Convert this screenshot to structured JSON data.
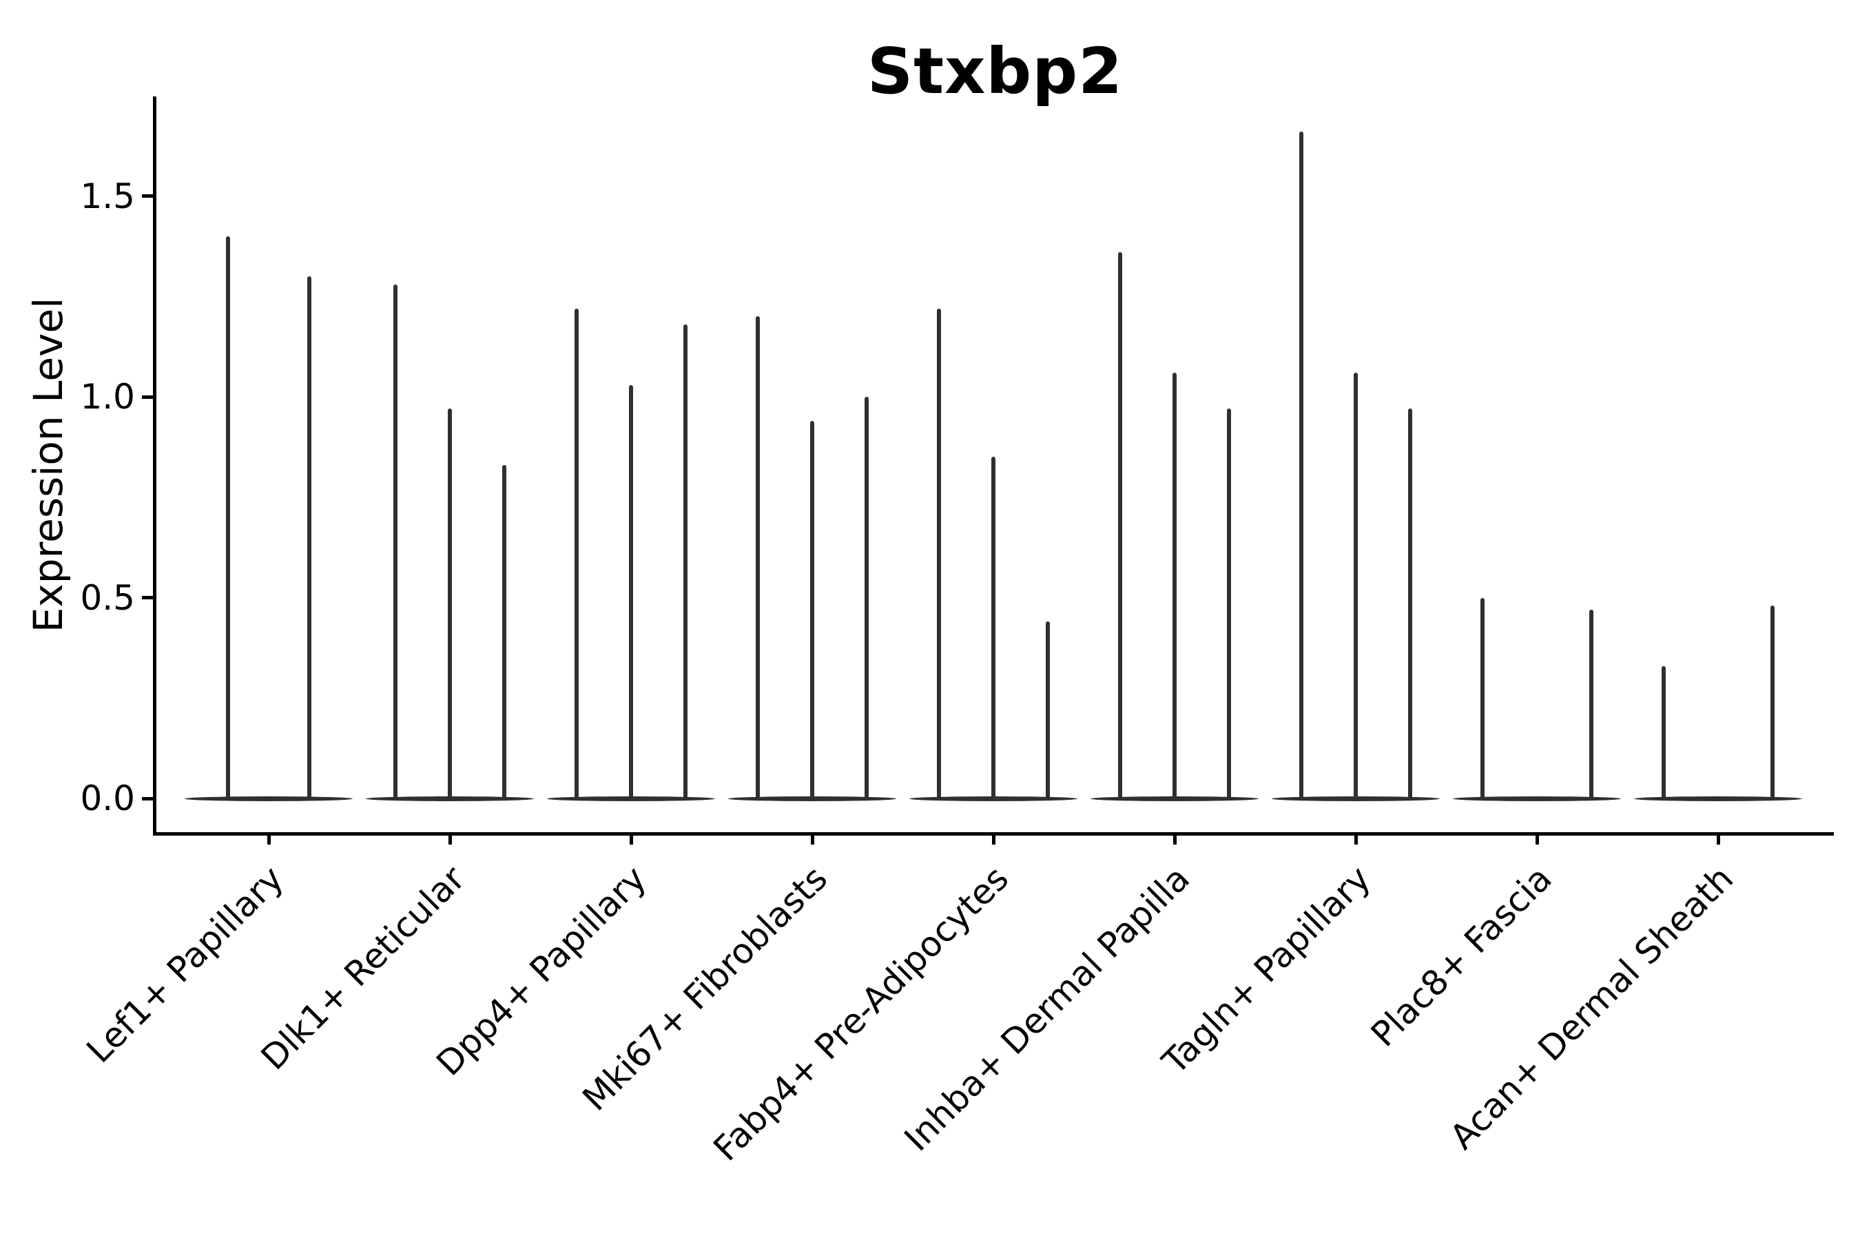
{
  "title": "Stxbp2",
  "y_axis": {
    "label": "Expression Level",
    "tick_labels": [
      "0.0",
      "0.5",
      "1.0",
      "1.5"
    ]
  },
  "x_axis": {
    "categories": [
      "Lef1+ Papillary",
      "Dlk1+ Reticular",
      "Dpp4+ Papillary",
      "Mki67+ Fibroblasts",
      "Fabp4+ Pre-Adipocytes",
      "Inhba+ Dermal Papilla",
      "Tagln+ Papillary",
      "Plac8+ Fascia",
      "Acan+ Dermal Sheath"
    ],
    "label_rotation_deg": 45
  },
  "colors": {
    "background": "#ffffff",
    "axis": "#000000",
    "text": "#000000",
    "violin": "#303030"
  },
  "chart_data": {
    "type": "violin",
    "title": "Stxbp2",
    "xlabel": "",
    "ylabel": "Expression Level",
    "ylim": [
      0,
      1.75
    ],
    "yticks": [
      0.0,
      0.5,
      1.0,
      1.5
    ],
    "ytick_labels": [
      "0.0",
      "0.5",
      "1.0",
      "1.5"
    ],
    "grid": false,
    "legend": "none",
    "categories": [
      "Lef1+ Papillary",
      "Dlk1+ Reticular",
      "Dpp4+ Papillary",
      "Mki67+ Fibroblasts",
      "Fabp4+ Pre-Adipocytes",
      "Inhba+ Dermal Papilla",
      "Tagln+ Papillary",
      "Plac8+ Fascia",
      "Acan+ Dermal Sheath"
    ],
    "violin_note": "Each category shows narrow spike-shaped violins (max expression) rising from a flat lens-shaped base at 0; offset is the fraction of category spacing from the category tick.",
    "violins": [
      {
        "category": "Lef1+ Papillary",
        "spikes": [
          {
            "offset": -0.225,
            "max": 1.4
          },
          {
            "offset": 0.225,
            "max": 1.3
          }
        ]
      },
      {
        "category": "Dlk1+ Reticular",
        "spikes": [
          {
            "offset": -0.3,
            "max": 1.28
          },
          {
            "offset": 0.0,
            "max": 0.97
          },
          {
            "offset": 0.3,
            "max": 0.83
          }
        ]
      },
      {
        "category": "Dpp4+ Papillary",
        "spikes": [
          {
            "offset": -0.3,
            "max": 1.22
          },
          {
            "offset": 0.0,
            "max": 1.03
          },
          {
            "offset": 0.3,
            "max": 1.18
          }
        ]
      },
      {
        "category": "Mki67+ Fibroblasts",
        "spikes": [
          {
            "offset": -0.3,
            "max": 1.2
          },
          {
            "offset": 0.0,
            "max": 0.94
          },
          {
            "offset": 0.3,
            "max": 1.0
          }
        ]
      },
      {
        "category": "Fabp4+ Pre-Adipocytes",
        "spikes": [
          {
            "offset": -0.3,
            "max": 1.22
          },
          {
            "offset": 0.0,
            "max": 0.85
          },
          {
            "offset": 0.3,
            "max": 0.44
          }
        ]
      },
      {
        "category": "Inhba+ Dermal Papilla",
        "spikes": [
          {
            "offset": -0.3,
            "max": 1.36
          },
          {
            "offset": 0.0,
            "max": 1.06
          },
          {
            "offset": 0.3,
            "max": 0.97
          }
        ]
      },
      {
        "category": "Tagln+ Papillary",
        "spikes": [
          {
            "offset": -0.3,
            "max": 1.66
          },
          {
            "offset": 0.0,
            "max": 1.06
          },
          {
            "offset": 0.3,
            "max": 0.97
          }
        ]
      },
      {
        "category": "Plac8+ Fascia",
        "spikes": [
          {
            "offset": -0.3,
            "max": 0.5
          },
          {
            "offset": 0.3,
            "max": 0.47
          }
        ]
      },
      {
        "category": "Acan+ Dermal Sheath",
        "spikes": [
          {
            "offset": -0.3,
            "max": 0.33
          },
          {
            "offset": 0.3,
            "max": 0.48
          }
        ]
      }
    ]
  }
}
